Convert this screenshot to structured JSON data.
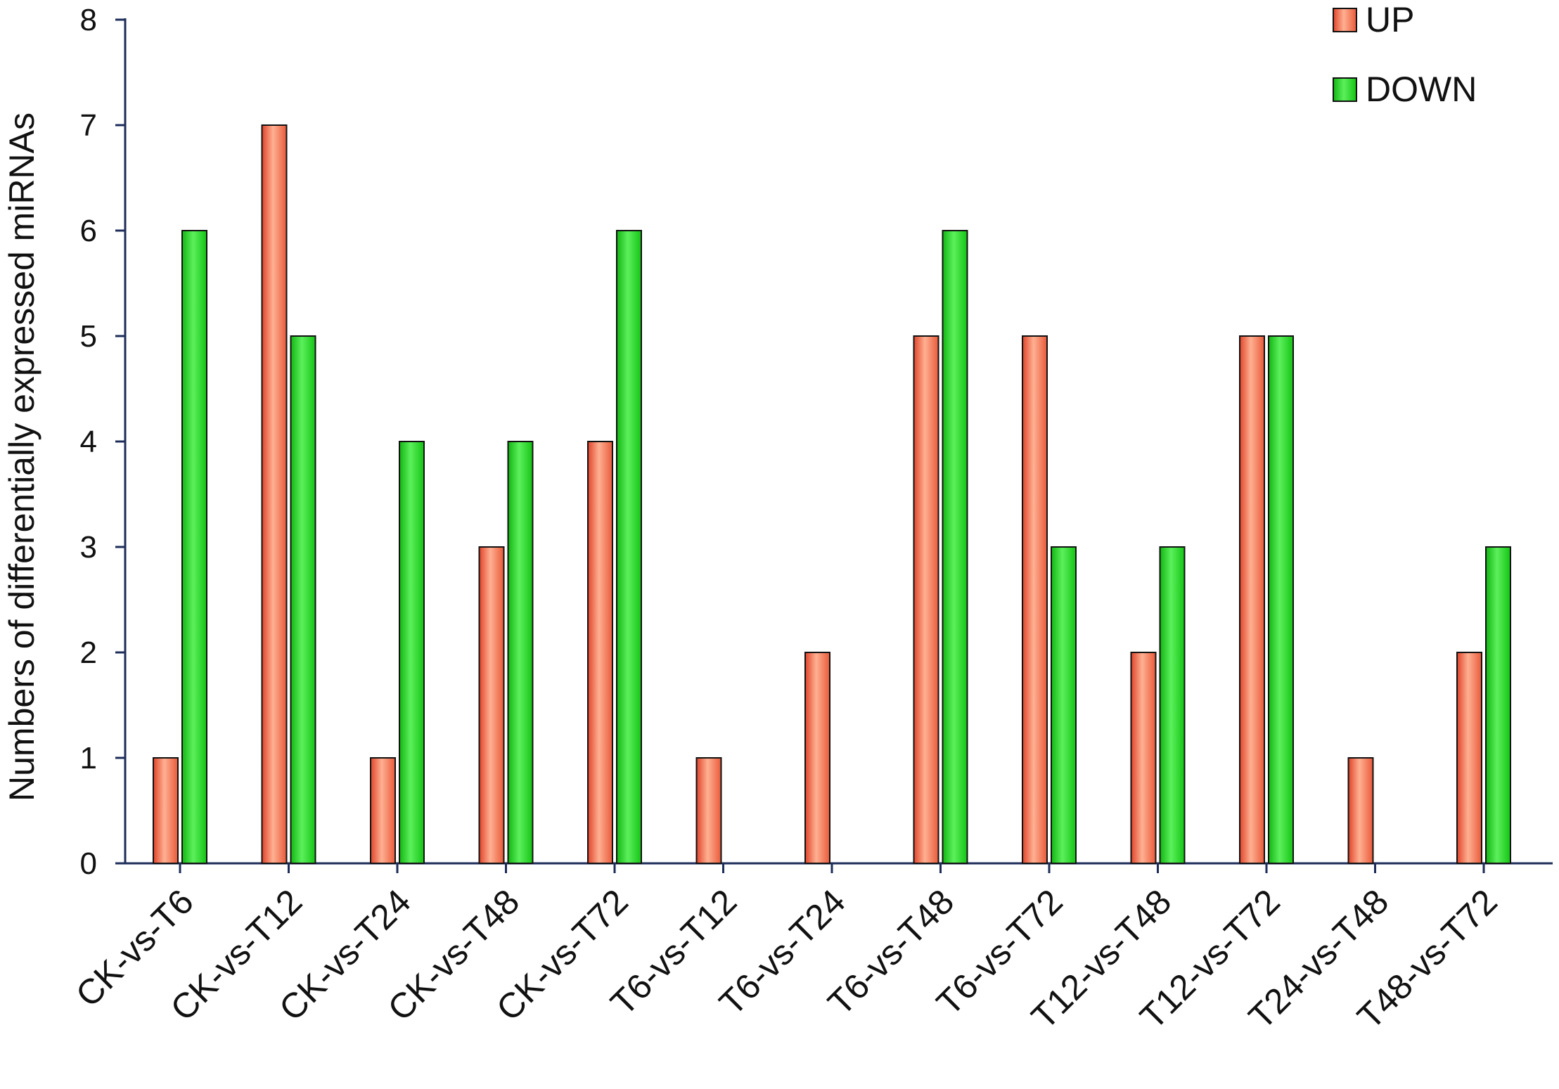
{
  "chart_data": {
    "type": "bar",
    "title": "",
    "xlabel": "",
    "ylabel": "Numbers of differentially expressed miRNAs",
    "ylim": [
      0,
      8
    ],
    "yticks": [
      0,
      1,
      2,
      3,
      4,
      5,
      6,
      7,
      8
    ],
    "grid": false,
    "legend_position": "top-right",
    "categories": [
      "CK-vs-T6",
      "CK-vs-T12",
      "CK-vs-T24",
      "CK-vs-T48",
      "CK-vs-T72",
      "T6-vs-T12",
      "T6-vs-T24",
      "T6-vs-T48",
      "T6-vs-T72",
      "T12-vs-T48",
      "T12-vs-T72",
      "T24-vs-T48",
      "T48-vs-T72"
    ],
    "series": [
      {
        "name": "UP",
        "color": "#f4744e",
        "values": [
          1,
          7,
          1,
          3,
          4,
          1,
          2,
          5,
          5,
          2,
          5,
          1,
          2
        ]
      },
      {
        "name": "DOWN",
        "color": "#22d622",
        "values": [
          6,
          5,
          4,
          4,
          6,
          0,
          0,
          6,
          3,
          3,
          5,
          0,
          3
        ]
      }
    ]
  }
}
